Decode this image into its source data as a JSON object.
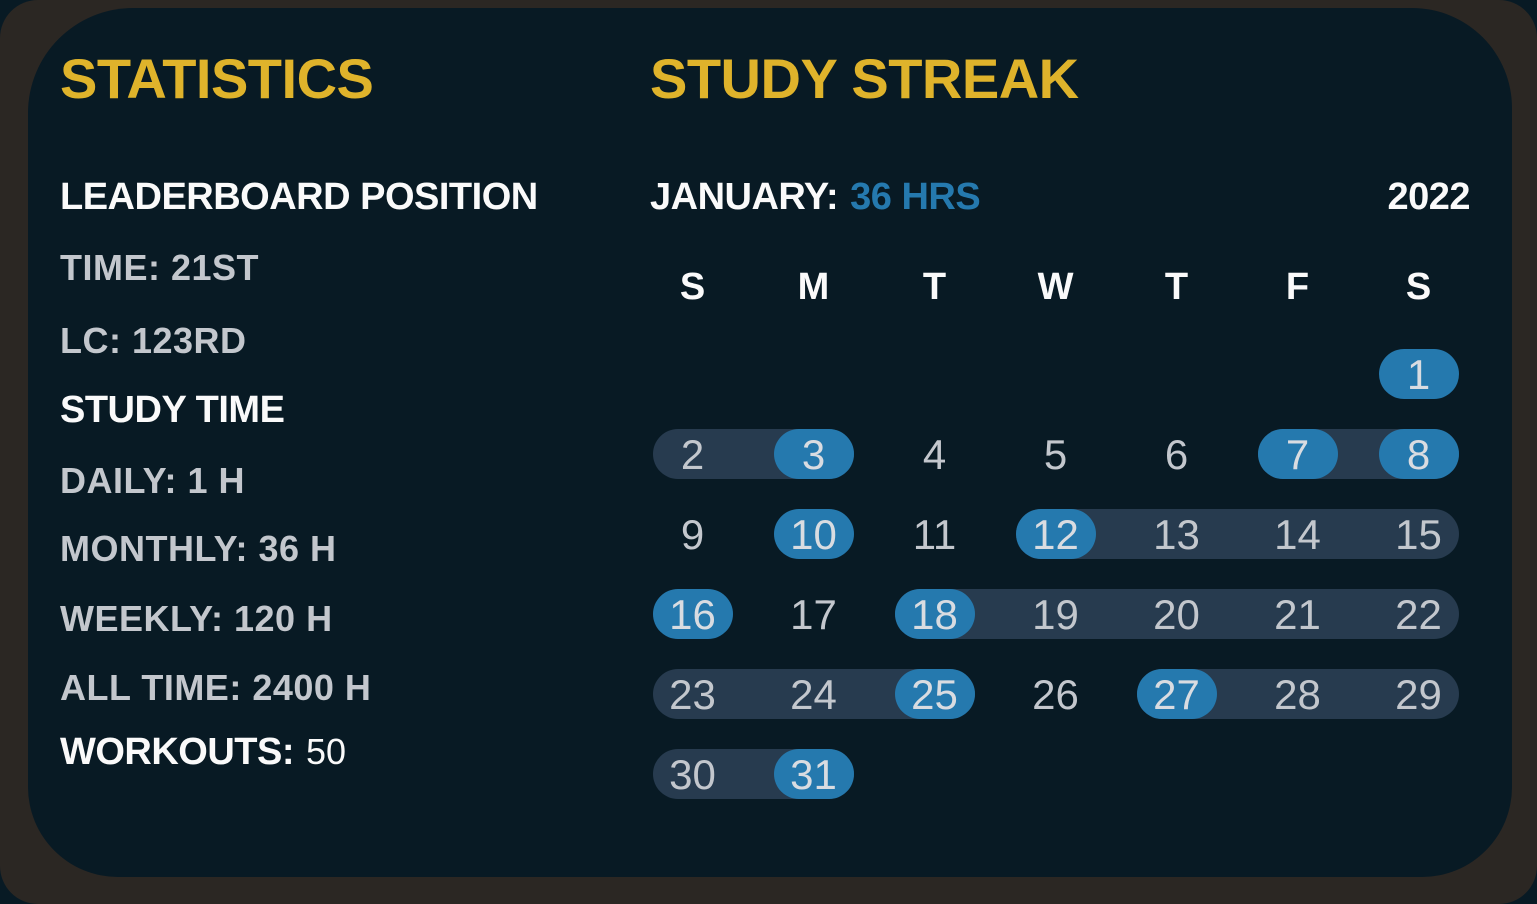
{
  "colors": {
    "card_bg": "#081a24",
    "frame_bg": "#2b2723",
    "accent_yellow": "#dfb32b",
    "accent_blue": "#2579ae",
    "streak_band": "#273b4f",
    "text_grey": "#c3c7cd",
    "text_white": "#fafafa"
  },
  "stats_panel": {
    "title": "STATISTICS",
    "leaderboard_heading": "LEADERBOARD POSITION",
    "leaderboard_items": [
      "TIME: 21ST",
      "LC: 123RD"
    ],
    "study_time_heading": "STUDY TIME",
    "study_time_items": [
      "DAILY: 1 H",
      "MONTHLY: 36 H",
      "WEEKLY: 120 H",
      "ALL TIME: 2400 H"
    ],
    "workouts_label": "WORKOUTS:",
    "workouts_value": "50"
  },
  "streak_panel": {
    "title": "STUDY STREAK",
    "month_label": "JANUARY:",
    "month_hours": "36 HRS",
    "year": "2022",
    "day_headers": [
      "S",
      "M",
      "T",
      "W",
      "T",
      "F",
      "S"
    ],
    "calendar": {
      "days_in_month": 31,
      "first_day_column": 6,
      "studied_days": [
        1,
        3,
        7,
        8,
        10,
        12,
        16,
        18,
        25,
        27,
        31
      ],
      "streak_ranges": [
        [
          2,
          3
        ],
        [
          7,
          8
        ],
        [
          12,
          15
        ],
        [
          18,
          22
        ],
        [
          23,
          25
        ],
        [
          27,
          29
        ],
        [
          30,
          31
        ]
      ]
    }
  }
}
